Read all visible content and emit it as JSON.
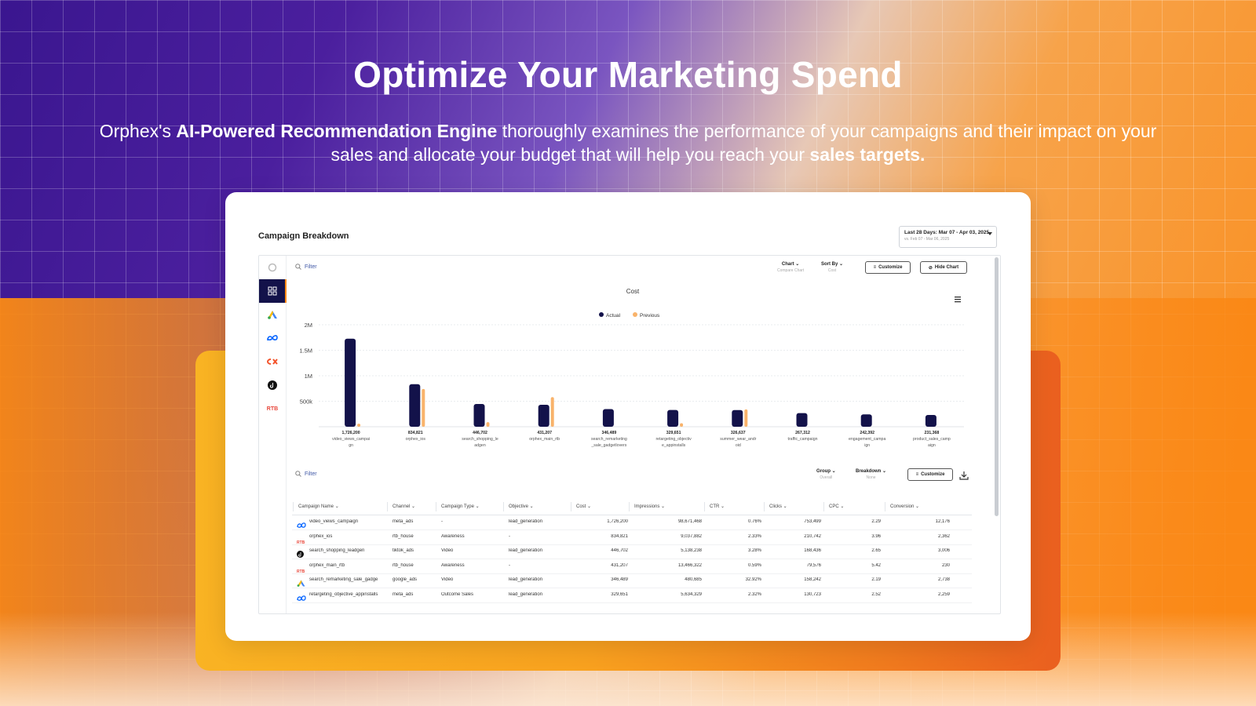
{
  "hero": {
    "headline": "Optimize Your Marketing Spend",
    "sub_pre": "Orphex's ",
    "sub_bold1": "AI-Powered Recommendation Engine",
    "sub_mid": " thoroughly examines the performance of your campaigns and their impact on your sales and allocate your budget that will help you reach your ",
    "sub_bold2": "sales targets."
  },
  "dashboard": {
    "title": "Campaign Breakdown",
    "date_range": "Last 28 Days: Mar 07 - Apr 03, 2025",
    "date_compare": "vs. Feb 07 - Mar 06, 2025",
    "filter_placeholder": "Filter",
    "chart_label": "Chart",
    "chart_sub": "Compare Chart",
    "sortby_label": "Sort By",
    "sortby_sub": "Cost",
    "customize_label": "Customize",
    "hide_chart_label": "Hide Chart",
    "group_label": "Group",
    "group_sub": "Overall",
    "breakdown_label": "Breakdown",
    "breakdown_sub": "None",
    "rail_rtb": "RTB"
  },
  "chart_data": {
    "type": "bar",
    "title": "Cost",
    "legend": [
      "Actual",
      "Previous"
    ],
    "legend_position": "top-center",
    "yticks": [
      "2M",
      "1.5M",
      "1M",
      "500k"
    ],
    "ylim": [
      0,
      2000000
    ],
    "grid": true,
    "categories": [
      "video_views_campaign",
      "orphex_ios",
      "search_shopping_leadgen",
      "orphex_main_rtb",
      "search_remarketing_sale_gadgetlovers",
      "retargeting_objective_appinstalls",
      "summer_wear_android",
      "traffic_campaign",
      "engagement_campaign",
      "product_sales_campaign"
    ],
    "category_labels": [
      [
        "video_views_campai",
        "gn"
      ],
      [
        "orphex_ios"
      ],
      [
        "search_shopping_le",
        "adgen"
      ],
      [
        "orphex_main_rtb"
      ],
      [
        "search_remarketing",
        "_sale_gadgetlovers"
      ],
      [
        "retargeting_objectiv",
        "e_appinstalls"
      ],
      [
        "summer_wear_andr",
        "oid"
      ],
      [
        "traffic_campaign"
      ],
      [
        "engagement_campa",
        "ign"
      ],
      [
        "product_sales_camp",
        "aign"
      ]
    ],
    "value_labels": [
      "1,726,200",
      "834,821",
      "446,702",
      "431,207",
      "346,489",
      "329,651",
      "326,637",
      "267,312",
      "242,392",
      "231,368"
    ],
    "series": [
      {
        "name": "Actual",
        "color": "#13124a",
        "values": [
          1726200,
          834821,
          446702,
          431207,
          346489,
          329651,
          326637,
          267312,
          242392,
          231368
        ]
      },
      {
        "name": "Previous",
        "color": "#f9b36b",
        "values": [
          60000,
          740000,
          90000,
          580000,
          0,
          70000,
          340000,
          0,
          0,
          0
        ]
      }
    ]
  },
  "table": {
    "columns": [
      "Campaign Name",
      "Channel",
      "Campaign Type",
      "Objective",
      "Cost",
      "Impressions",
      "CTR",
      "Clicks",
      "CPC",
      "Conversion"
    ],
    "rows": [
      {
        "icon": "meta",
        "name": "video_views_campaign",
        "channel": "meta_ads",
        "type": "-",
        "objective": "lead_generation",
        "cost": "1,726,200",
        "impressions": "98,671,468",
        "ctr": "0.76%",
        "clicks": "753,499",
        "cpc": "2.29",
        "conversion": "12,176"
      },
      {
        "icon": "rtb",
        "name": "orphex_ios",
        "channel": "rtb_house",
        "type": "Awareness",
        "objective": "-",
        "cost": "834,821",
        "impressions": "9,037,882",
        "ctr": "2.33%",
        "clicks": "210,742",
        "cpc": "3.96",
        "conversion": "2,362"
      },
      {
        "icon": "tiktok",
        "name": "search_shopping_leadgen",
        "channel": "tiktok_ads",
        "type": "Video",
        "objective": "lead_generation",
        "cost": "446,702",
        "impressions": "5,138,238",
        "ctr": "3.28%",
        "clicks": "168,436",
        "cpc": "2.65",
        "conversion": "3,006"
      },
      {
        "icon": "rtb",
        "name": "orphex_main_rtb",
        "channel": "rtb_house",
        "type": "Awareness",
        "objective": "-",
        "cost": "431,207",
        "impressions": "13,466,322",
        "ctr": "0.59%",
        "clicks": "79,576",
        "cpc": "5.42",
        "conversion": "230"
      },
      {
        "icon": "google",
        "name": "search_remarketing_sale_gadge",
        "channel": "google_ads",
        "type": "Video",
        "objective": "lead_generation",
        "cost": "346,489",
        "impressions": "480,685",
        "ctr": "32.92%",
        "clicks": "158,242",
        "cpc": "2.19",
        "conversion": "2,738"
      },
      {
        "icon": "meta",
        "name": "retargeting_objective_appinstalls",
        "channel": "meta_ads",
        "type": "Outcome Sales",
        "objective": "lead_generation",
        "cost": "329,651",
        "impressions": "5,634,329",
        "ctr": "2.32%",
        "clicks": "130,723",
        "cpc": "2.52",
        "conversion": "2,259"
      }
    ]
  }
}
